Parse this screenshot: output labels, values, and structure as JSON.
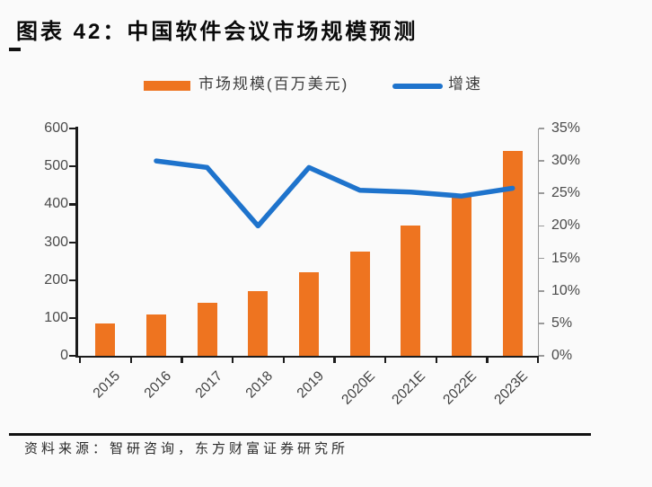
{
  "header": {
    "prefix_mark": "_",
    "title": "图表 42：中国软件会议市场规模预测"
  },
  "legend": {
    "bar_label": "市场规模(百万美元)",
    "line_label": "增速"
  },
  "colors": {
    "bar": "#EE7420",
    "line": "#1E73CC",
    "axis": "#1b1b1b",
    "right_axis_line": "#9a9a9a",
    "tick_label": "#4a4a4a",
    "background": "#fafafa"
  },
  "chart_data": {
    "type": "bar+line",
    "title": "中国软件会议市场规模预测",
    "categories": [
      "2015",
      "2016",
      "2017",
      "2018",
      "2019",
      "2020E",
      "2021E",
      "2022E",
      "2023E"
    ],
    "series": [
      {
        "name": "市场规模(百万美元)",
        "type": "bar",
        "axis": "left",
        "unit": "百万美元",
        "values": [
          85,
          110,
          140,
          170,
          220,
          275,
          345,
          425,
          540
        ]
      },
      {
        "name": "增速",
        "type": "line",
        "axis": "right",
        "unit": "%",
        "values": [
          null,
          30,
          29,
          20,
          29,
          25.5,
          25.2,
          24.6,
          25.8
        ]
      }
    ],
    "left_axis": {
      "min": 0,
      "max": 600,
      "step": 100,
      "tick_labels": [
        "0",
        "100",
        "200",
        "300",
        "400",
        "500",
        "600"
      ]
    },
    "right_axis": {
      "min": 0,
      "max": 35,
      "step": 5,
      "tick_labels": [
        "0%",
        "5%",
        "10%",
        "15%",
        "20%",
        "25%",
        "30%",
        "35%"
      ]
    },
    "grid": false,
    "legend_position": "top-center"
  },
  "footer": {
    "source": "资料来源：智研咨询，东方财富证券研究所"
  }
}
